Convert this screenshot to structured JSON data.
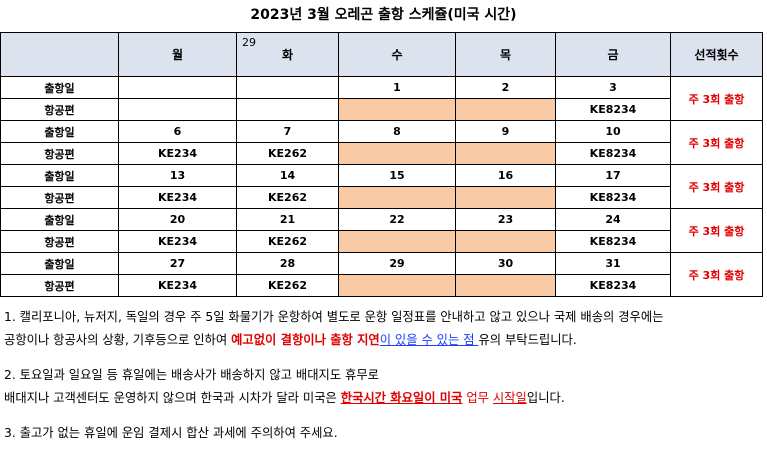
{
  "title": "2023년 3월 오레곤 출항 스케쥴(미국 시간)",
  "header": {
    "corner": "",
    "corner_number": "29",
    "days": [
      "월",
      "화",
      "수",
      "목",
      "금"
    ],
    "freq_header": "선적횟수"
  },
  "weeks": [
    {
      "dates": [
        "",
        "",
        "1",
        "2",
        "3"
      ],
      "flights": [
        "",
        "",
        "",
        "",
        "KE8234"
      ],
      "freq": "주 3회 출항"
    },
    {
      "dates": [
        "6",
        "7",
        "8",
        "9",
        "10"
      ],
      "flights": [
        "KE234",
        "KE262",
        "",
        "",
        "KE8234"
      ],
      "freq": "주 3회 출항"
    },
    {
      "dates": [
        "13",
        "14",
        "15",
        "16",
        "17"
      ],
      "flights": [
        "KE234",
        "KE262",
        "",
        "",
        "KE8234"
      ],
      "freq": "주 3회 출항"
    },
    {
      "dates": [
        "20",
        "21",
        "22",
        "23",
        "24"
      ],
      "flights": [
        "KE234",
        "KE262",
        "",
        "",
        "KE8234"
      ],
      "freq": "주 3회 출항"
    },
    {
      "dates": [
        "27",
        "28",
        "29",
        "30",
        "31"
      ],
      "flights": [
        "KE234",
        "KE262",
        "",
        "",
        "KE8234"
      ],
      "freq": "주 3회 출항"
    }
  ],
  "row_labels": {
    "date": "출항일",
    "flight": "항공편"
  },
  "notes": {
    "n1_line1": "1. 캘리포니아, 뉴저지, 독일의 경우 주 5일 화물기가 운항하여 별도로 운항 일정표를 안내하고 않고 있으나 국제 배송의 경우에는",
    "n1_line2_a": "공항이나 항공사의 상황, 기후등으로 인하여 ",
    "n1_line2_red": "예고없이 결항이나 출항 지연",
    "n1_line2_blue": "이 있을 수 있는 점 ",
    "n1_line2_b": "유의 부탁드립니다.",
    "n2_line1": "2. 토요일과 일요일 등 휴일에는 배송사가 배송하지 않고 배대지도 휴무로",
    "n2_line2_a": "배대지나 고객센터도 운영하지 않으며 한국과 시차가 달라 미국은 ",
    "n2_line2_red": "한국시간 화요일이 미국",
    "n2_line2_sp": " ",
    "n2_line2_redplain1": "업무",
    "n2_line2_sp2": " ",
    "n2_line2_redplain2": "시작일",
    "n2_line2_b": "입니다.",
    "n3": "3. 출고가 없는 휴일에 운임 결제시 합산 과세에 주의하여 주세요."
  },
  "colors": {
    "header_bg": "#dde3ee",
    "peach": "#f8cba6",
    "red": "#e00000",
    "blue": "#1f3fff"
  }
}
